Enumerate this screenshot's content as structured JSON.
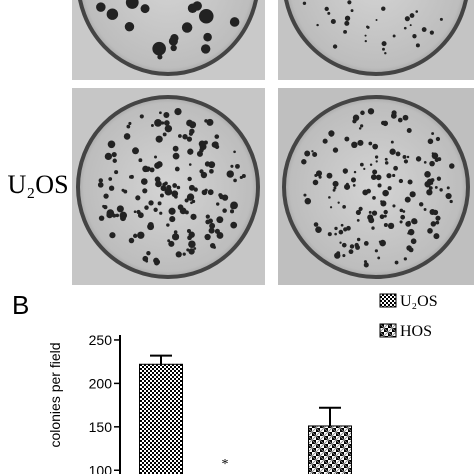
{
  "figure": {
    "row_label": "U₂OS",
    "panel_label": "B"
  },
  "chart_data": {
    "type": "bar",
    "y_label": "colonies per field",
    "series": [
      {
        "name": "U₂OS",
        "values": [
          222
        ],
        "errors": [
          10
        ]
      },
      {
        "name": "HOS",
        "values": [
          151
        ],
        "errors": [
          21
        ]
      }
    ],
    "annotations": [
      "*"
    ],
    "ylim": [
      98,
      258
    ],
    "yticks": [
      100,
      150,
      200,
      250
    ]
  }
}
